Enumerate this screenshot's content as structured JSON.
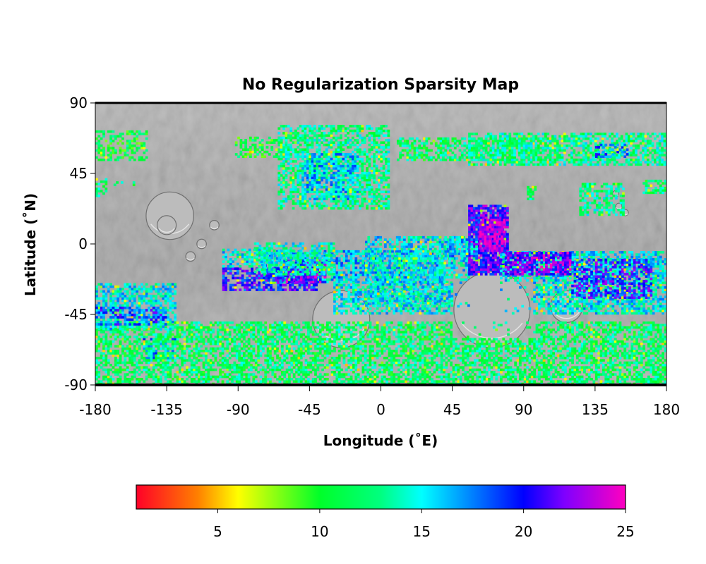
{
  "figure": {
    "title": "No Regularization Sparsity Map",
    "xlabel": "Longitude (˚E)",
    "ylabel": "Latitude (˚N)"
  },
  "chart_data": {
    "type": "heatmap",
    "title": "No Regularization Sparsity Map",
    "xlabel": "Longitude (˚E)",
    "ylabel": "Latitude (˚N)",
    "xlim": [
      -180,
      180
    ],
    "ylim": [
      -90,
      90
    ],
    "xticks": [
      -180,
      -135,
      -90,
      -45,
      0,
      45,
      90,
      135,
      180
    ],
    "xtick_labels": [
      "-180",
      "-135",
      "-90",
      "-45",
      "0",
      "45",
      "90",
      "135",
      "180"
    ],
    "yticks": [
      90,
      45,
      0,
      -45,
      -90
    ],
    "ytick_labels": [
      "90",
      "45",
      "0",
      "-45",
      "-90"
    ],
    "basemap": "grey shaded-relief planetary topography",
    "colormap": "gist_rainbow",
    "colorbar": {
      "orientation": "horizontal",
      "placement": "bottom",
      "range": [
        1,
        25
      ],
      "ticks": [
        5,
        10,
        15,
        20,
        25
      ],
      "tick_labels": [
        "5",
        "10",
        "15",
        "20",
        "25"
      ],
      "stops": [
        {
          "v": 1,
          "color": "#ff0028"
        },
        {
          "v": 4,
          "color": "#ff7f00"
        },
        {
          "v": 6,
          "color": "#ffff00"
        },
        {
          "v": 10,
          "color": "#00ff29"
        },
        {
          "v": 13,
          "color": "#00ff80"
        },
        {
          "v": 15,
          "color": "#00ffff"
        },
        {
          "v": 20,
          "color": "#0000ff"
        },
        {
          "v": 22,
          "color": "#7f00ff"
        },
        {
          "v": 25,
          "color": "#ff00bf"
        }
      ]
    },
    "regions": [
      {
        "lon": [
          -180,
          -148
        ],
        "lat": [
          53,
          72
        ],
        "value": 11,
        "density": 0.5
      },
      {
        "lon": [
          -180,
          -173
        ],
        "lat": [
          30,
          42
        ],
        "value": 12,
        "density": 0.55
      },
      {
        "lon": [
          -170,
          -155
        ],
        "lat": [
          37,
          40
        ],
        "value": 12,
        "density": 0.35
      },
      {
        "lon": [
          -92,
          -60
        ],
        "lat": [
          55,
          68
        ],
        "value": 11,
        "density": 0.45
      },
      {
        "lon": [
          -65,
          5
        ],
        "lat": [
          22,
          75
        ],
        "value": 13,
        "density": 0.6
      },
      {
        "lon": [
          -50,
          -15
        ],
        "lat": [
          28,
          58
        ],
        "value": 16,
        "density": 0.55
      },
      {
        "lon": [
          10,
          110
        ],
        "lat": [
          53,
          68
        ],
        "value": 12,
        "density": 0.55
      },
      {
        "lon": [
          55,
          180
        ],
        "lat": [
          50,
          70
        ],
        "value": 13,
        "density": 0.6
      },
      {
        "lon": [
          135,
          155
        ],
        "lat": [
          55,
          63
        ],
        "value": 18,
        "density": 0.4
      },
      {
        "lon": [
          125,
          153
        ],
        "lat": [
          18,
          38
        ],
        "value": 13,
        "density": 0.55
      },
      {
        "lon": [
          92,
          98
        ],
        "lat": [
          28,
          36
        ],
        "value": 12,
        "density": 0.6
      },
      {
        "lon": [
          165,
          180
        ],
        "lat": [
          32,
          40
        ],
        "value": 12,
        "density": 0.5
      },
      {
        "lon": [
          -150,
          -130
        ],
        "lat": [
          -75,
          -60
        ],
        "value": 17,
        "density": 0.6
      },
      {
        "lon": [
          -75,
          40
        ],
        "lat": [
          -25,
          -5
        ],
        "value": 16,
        "density": 0.7
      },
      {
        "lon": [
          -100,
          -40
        ],
        "lat": [
          -30,
          -15
        ],
        "value": 20,
        "density": 0.6
      },
      {
        "lon": [
          -60,
          -35
        ],
        "lat": [
          -25,
          -10
        ],
        "value": 22,
        "density": 0.65
      },
      {
        "lon": [
          -30,
          50
        ],
        "lat": [
          -45,
          -25
        ],
        "value": 15,
        "density": 0.55
      },
      {
        "lon": [
          -180,
          180
        ],
        "lat": [
          -90,
          -50
        ],
        "value": 12,
        "density": 0.6
      },
      {
        "lon": [
          -180,
          -130
        ],
        "lat": [
          -55,
          -25
        ],
        "value": 15,
        "density": 0.6
      },
      {
        "lon": [
          -180,
          -135
        ],
        "lat": [
          -52,
          -40
        ],
        "value": 19,
        "density": 0.4
      },
      {
        "lon": [
          -80,
          -30
        ],
        "lat": [
          -20,
          0
        ],
        "value": 14,
        "density": 0.6
      },
      {
        "lon": [
          -10,
          55
        ],
        "lat": [
          -40,
          5
        ],
        "value": 15,
        "density": 0.55
      },
      {
        "lon": [
          55,
          80
        ],
        "lat": [
          -20,
          25
        ],
        "value": 21,
        "density": 0.85
      },
      {
        "lon": [
          62,
          78
        ],
        "lat": [
          -5,
          15
        ],
        "value": 24,
        "density": 0.7
      },
      {
        "lon": [
          75,
          180
        ],
        "lat": [
          -45,
          -5
        ],
        "value": 15,
        "density": 0.65
      },
      {
        "lon": [
          78,
          120
        ],
        "lat": [
          -20,
          -5
        ],
        "value": 22,
        "density": 0.75
      },
      {
        "lon": [
          120,
          170
        ],
        "lat": [
          -35,
          -10
        ],
        "value": 20,
        "density": 0.55
      },
      {
        "lon": [
          40,
          60
        ],
        "lat": [
          -10,
          5
        ],
        "value": 16,
        "density": 0.55
      },
      {
        "lon": [
          -100,
          -75
        ],
        "lat": [
          -15,
          -3
        ],
        "value": 15,
        "density": 0.5
      }
    ],
    "no_data_regions": [
      {
        "lon": [
          45,
          95
        ],
        "lat": [
          -60,
          -25
        ]
      }
    ],
    "relief_features": [
      {
        "lon": -133,
        "lat": 18,
        "r": 15
      },
      {
        "lon": -135,
        "lat": 12,
        "r": 6
      },
      {
        "lon": -113,
        "lat": 0,
        "r": 3
      },
      {
        "lon": -105,
        "lat": 12,
        "r": 3
      },
      {
        "lon": -120,
        "lat": -8,
        "r": 3
      },
      {
        "lon": -25,
        "lat": -48,
        "r": 18
      },
      {
        "lon": 70,
        "lat": -42,
        "r": 24
      },
      {
        "lon": 117,
        "lat": -40,
        "r": 10
      },
      {
        "lon": 148,
        "lat": 32,
        "r": 2
      },
      {
        "lon": 150,
        "lat": 24,
        "r": 2
      },
      {
        "lon": 154,
        "lat": 20,
        "r": 2
      }
    ]
  }
}
